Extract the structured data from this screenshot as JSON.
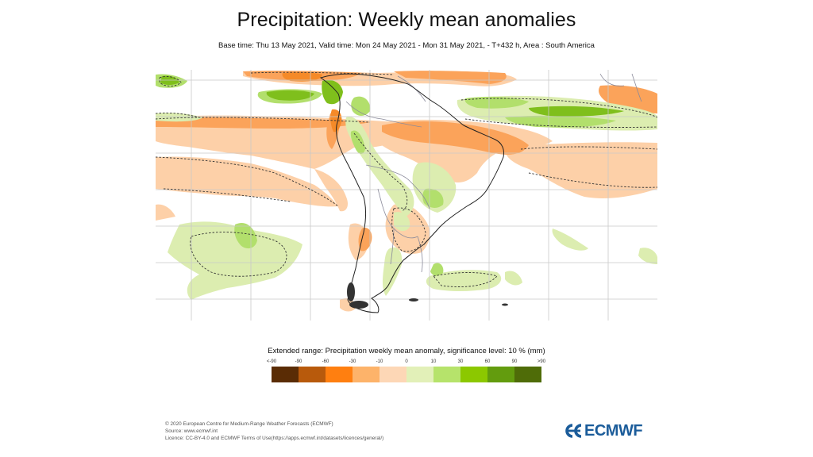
{
  "header": {
    "title": "Precipitation: Weekly mean anomalies",
    "subtitle": "Base time: Thu 13 May 2021, Valid time: Mon 24 May 2021 - Mon 31 May 2021, - T+432 h, Area : South America"
  },
  "map": {
    "area": "South America",
    "region_name": "south-america-precipitation-anomaly-map",
    "colors": {
      "gridline": "#c8c8c8",
      "coastline": "#222222",
      "border": "#8a8a9a",
      "contour": "#333333"
    }
  },
  "legend": {
    "title": "Extended range: Precipitation weekly mean anomaly, significance level: 10 % (mm)",
    "ticks": [
      "<-90",
      "-90",
      "-60",
      "-30",
      "-10",
      "0",
      "10",
      "30",
      "60",
      "90",
      ">90"
    ],
    "colors": [
      "#5a2c05",
      "#b85a0c",
      "#ff7f10",
      "#fdb36a",
      "#fdd7b6",
      "#e2f0b8",
      "#b6e36b",
      "#8cc800",
      "#639c0e",
      "#4f6c08"
    ]
  },
  "footer": {
    "lines": [
      "© 2020 European Centre for Medium-Range Weather Forecasts (ECMWF)",
      "Source: www.ecmwf.int",
      "Licence: CC-BY-4.0 and ECMWF Terms of Use(https://apps.ecmwf.int/datasets/licences/general/)"
    ]
  },
  "logo": {
    "text": "ECMWF",
    "color": "#1b5c9a"
  }
}
